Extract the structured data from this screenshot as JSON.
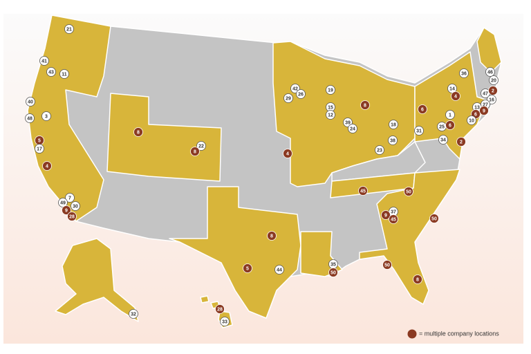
{
  "markers": [
    {
      "label": "21",
      "multiple": false
    },
    {
      "label": "41",
      "multiple": false
    },
    {
      "label": "43",
      "multiple": false
    },
    {
      "label": "11",
      "multiple": false
    },
    {
      "label": "40",
      "multiple": false
    },
    {
      "label": "3",
      "multiple": false
    },
    {
      "label": "48",
      "multiple": false
    },
    {
      "label": "5",
      "multiple": true
    },
    {
      "label": "17",
      "multiple": false
    },
    {
      "label": "4",
      "multiple": true
    },
    {
      "label": "7",
      "multiple": false
    },
    {
      "label": "49",
      "multiple": false
    },
    {
      "label": "30",
      "multiple": false
    },
    {
      "label": "9",
      "multiple": true
    },
    {
      "label": "28",
      "multiple": true
    },
    {
      "label": "8",
      "multiple": true
    },
    {
      "label": "22",
      "multiple": false
    },
    {
      "label": "8",
      "multiple": true
    },
    {
      "label": "4",
      "multiple": true
    },
    {
      "label": "42",
      "multiple": false
    },
    {
      "label": "26",
      "multiple": false
    },
    {
      "label": "29",
      "multiple": false
    },
    {
      "label": "19",
      "multiple": false
    },
    {
      "label": "15",
      "multiple": false
    },
    {
      "label": "12",
      "multiple": false
    },
    {
      "label": "39",
      "multiple": false
    },
    {
      "label": "24",
      "multiple": false
    },
    {
      "label": "8",
      "multiple": true
    },
    {
      "label": "18",
      "multiple": false
    },
    {
      "label": "38",
      "multiple": false
    },
    {
      "label": "23",
      "multiple": false
    },
    {
      "label": "6",
      "multiple": true
    },
    {
      "label": "31",
      "multiple": false
    },
    {
      "label": "1",
      "multiple": false
    },
    {
      "label": "25",
      "multiple": false
    },
    {
      "label": "6",
      "multiple": true
    },
    {
      "label": "34",
      "multiple": false
    },
    {
      "label": "2",
      "multiple": true
    },
    {
      "label": "36",
      "multiple": false
    },
    {
      "label": "14",
      "multiple": false
    },
    {
      "label": "4",
      "multiple": true
    },
    {
      "label": "46",
      "multiple": false
    },
    {
      "label": "20",
      "multiple": false
    },
    {
      "label": "47",
      "multiple": false
    },
    {
      "label": "2",
      "multiple": true
    },
    {
      "label": "16",
      "multiple": false
    },
    {
      "label": "13",
      "multiple": false
    },
    {
      "label": "27",
      "multiple": false
    },
    {
      "label": "6",
      "multiple": true
    },
    {
      "label": "9",
      "multiple": true
    },
    {
      "label": "10",
      "multiple": false
    },
    {
      "label": "45",
      "multiple": true
    },
    {
      "label": "50",
      "multiple": true
    },
    {
      "label": "37",
      "multiple": false
    },
    {
      "label": "9",
      "multiple": true
    },
    {
      "label": "45",
      "multiple": true
    },
    {
      "label": "50",
      "multiple": true
    },
    {
      "label": "8",
      "multiple": true
    },
    {
      "label": "5",
      "multiple": true
    },
    {
      "label": "44",
      "multiple": false
    },
    {
      "label": "35",
      "multiple": false
    },
    {
      "label": "50",
      "multiple": true
    },
    {
      "label": "50",
      "multiple": true
    },
    {
      "label": "8",
      "multiple": true
    },
    {
      "label": "32",
      "multiple": false
    },
    {
      "label": "28",
      "multiple": true
    },
    {
      "label": "33",
      "multiple": false
    }
  ],
  "legend": {
    "text": "= multiple company locations"
  }
}
